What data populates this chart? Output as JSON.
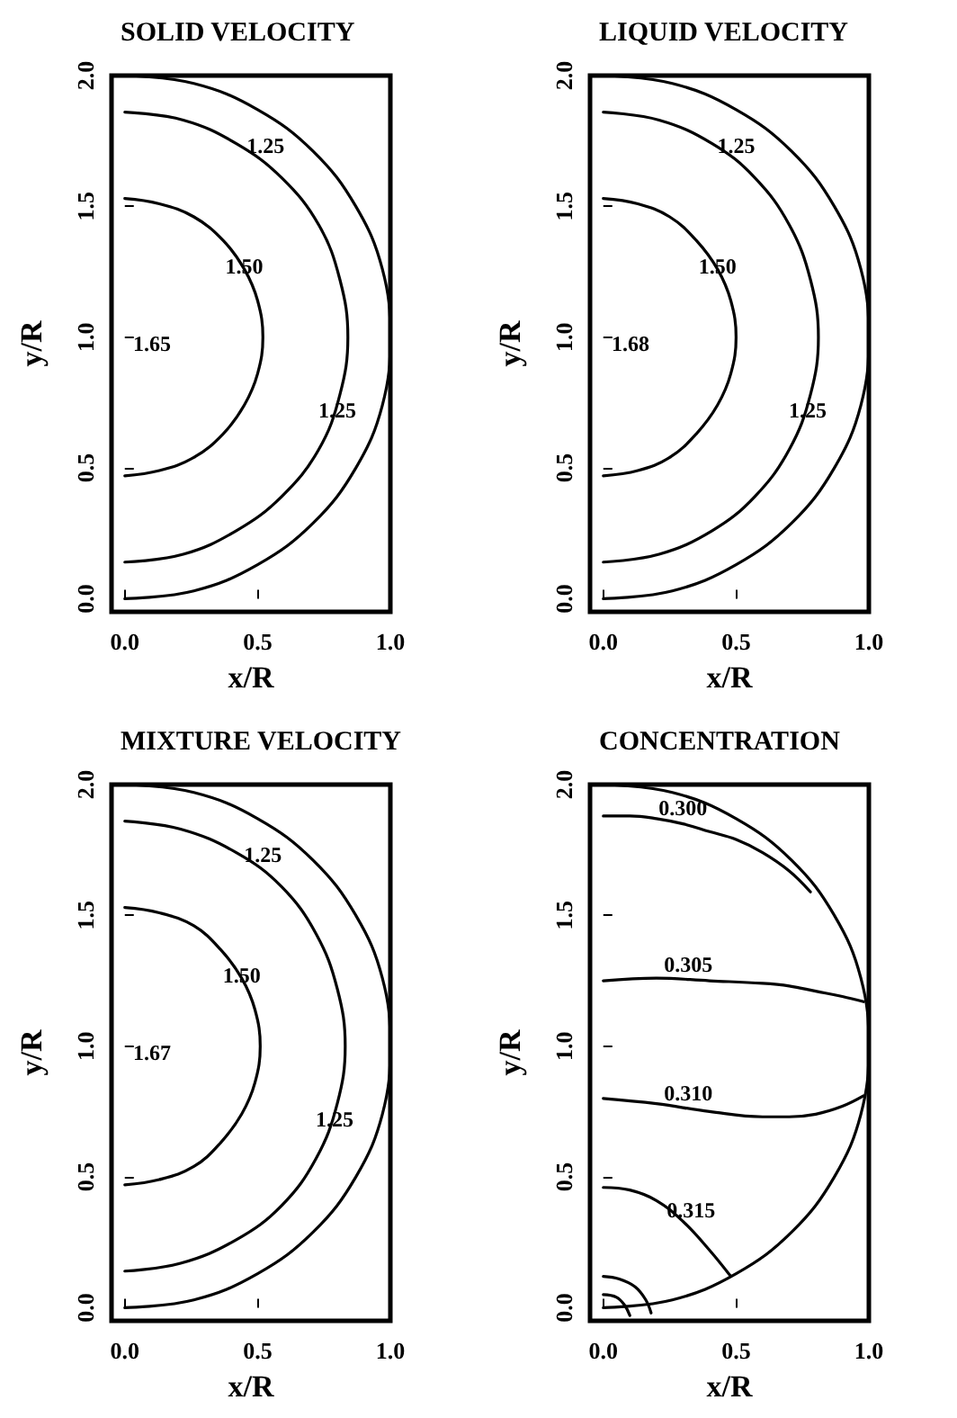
{
  "chart_data": [
    {
      "type": "line",
      "title": "SOLID VELOCITY",
      "xlabel": "x/R",
      "ylabel": "y/R",
      "xlim": [
        -0.05,
        1.0
      ],
      "ylim": [
        -0.05,
        2.0
      ],
      "marker": "none",
      "line_style": "solid",
      "xticks": [
        {
          "value": 0,
          "label": "0.0"
        },
        {
          "value": 0.5,
          "label": "0.5"
        },
        {
          "value": 1,
          "label": "1.0"
        }
      ],
      "yticks": [
        {
          "value": 0,
          "label": "0.0"
        },
        {
          "value": 0.5,
          "label": "0.5"
        },
        {
          "value": 1,
          "label": "1.0"
        },
        {
          "value": 1.5,
          "label": "1.5"
        },
        {
          "value": 2,
          "label": "2.0"
        }
      ],
      "series": [
        {
          "color": "#000000",
          "x": [
            0,
            0.26,
            0.5,
            0.71,
            0.87,
            0.97,
            1,
            0.97,
            0.87,
            0.71,
            0.5,
            0.26,
            0
          ],
          "values": [
            0,
            0.03,
            0.13,
            0.29,
            0.5,
            0.74,
            1,
            1.26,
            1.5,
            1.71,
            1.87,
            1.97,
            2
          ]
        },
        {
          "color": "#000000",
          "x": [
            0,
            0.22,
            0.42,
            0.59,
            0.73,
            0.81,
            0.84,
            0.81,
            0.73,
            0.59,
            0.42,
            0.22,
            0
          ],
          "values": [
            0.14,
            0.17,
            0.26,
            0.39,
            0.57,
            0.78,
            1,
            1.22,
            1.43,
            1.61,
            1.74,
            1.83,
            1.86
          ]
        },
        {
          "color": "#000000",
          "x": [
            0,
            0.13,
            0.26,
            0.37,
            0.45,
            0.5,
            0.52,
            0.5,
            0.45,
            0.37,
            0.26,
            0.13,
            0
          ],
          "values": [
            0.47,
            0.49,
            0.54,
            0.63,
            0.74,
            0.86,
            1,
            1.14,
            1.26,
            1.37,
            1.46,
            1.51,
            1.53
          ]
        }
      ],
      "annotations": [
        {
          "text": "1.25",
          "x": 0.53,
          "y": 1.67
        },
        {
          "text": "1.25",
          "x": 0.8,
          "y": 0.66
        },
        {
          "text": "1.50",
          "x": 0.45,
          "y": 1.21
        },
        "1.65"
      ]
    },
    {
      "type": "line",
      "title": "LIQUID VELOCITY",
      "xlabel": "x/R",
      "ylabel": "y/R",
      "xlim": [
        -0.05,
        1.0
      ],
      "ylim": [
        -0.05,
        2.0
      ],
      "marker": "none",
      "line_style": "solid",
      "xticks": [
        {
          "value": 0,
          "label": "0.0"
        },
        {
          "value": 0.5,
          "label": "0.5"
        },
        {
          "value": 1,
          "label": "1.0"
        }
      ],
      "yticks": [
        {
          "value": 0,
          "label": "0.0"
        },
        {
          "value": 0.5,
          "label": "0.5"
        },
        {
          "value": 1,
          "label": "1.0"
        },
        {
          "value": 1.5,
          "label": "1.5"
        },
        {
          "value": 2,
          "label": "2.0"
        }
      ],
      "series": [
        {
          "color": "#000000",
          "x": [
            0,
            0.26,
            0.5,
            0.71,
            0.87,
            0.97,
            1,
            0.97,
            0.87,
            0.71,
            0.5,
            0.26,
            0
          ],
          "values": [
            0,
            0.03,
            0.13,
            0.29,
            0.5,
            0.74,
            1,
            1.26,
            1.5,
            1.71,
            1.87,
            1.97,
            2
          ]
        },
        {
          "color": "#000000",
          "x": [
            0,
            0.21,
            0.41,
            0.57,
            0.7,
            0.78,
            0.81,
            0.78,
            0.7,
            0.57,
            0.41,
            0.21,
            0
          ],
          "values": [
            0.14,
            0.17,
            0.26,
            0.39,
            0.57,
            0.78,
            1,
            1.22,
            1.43,
            1.61,
            1.74,
            1.83,
            1.86
          ]
        },
        {
          "color": "#000000",
          "x": [
            0,
            0.13,
            0.25,
            0.35,
            0.43,
            0.48,
            0.5,
            0.48,
            0.43,
            0.35,
            0.25,
            0.13,
            0
          ],
          "values": [
            0.47,
            0.49,
            0.54,
            0.63,
            0.74,
            0.86,
            1,
            1.14,
            1.26,
            1.37,
            1.46,
            1.51,
            1.53
          ]
        }
      ],
      "annotations": [
        {
          "text": "1.25",
          "x": 0.5,
          "y": 1.67
        },
        {
          "text": "1.25",
          "x": 0.77,
          "y": 0.66
        },
        {
          "text": "1.50",
          "x": 0.43,
          "y": 1.21
        },
        "1.68"
      ]
    },
    {
      "type": "line",
      "title": "MIXTURE VELOCITY",
      "xlabel": "x/R",
      "ylabel": "y/R",
      "xlim": [
        -0.05,
        1.0
      ],
      "ylim": [
        -0.05,
        2.0
      ],
      "marker": "none",
      "line_style": "solid",
      "xticks": [
        {
          "value": 0,
          "label": "0.0"
        },
        {
          "value": 0.5,
          "label": "0.5"
        },
        {
          "value": 1,
          "label": "1.0"
        }
      ],
      "yticks": [
        {
          "value": 0,
          "label": "0.0"
        },
        {
          "value": 0.5,
          "label": "0.5"
        },
        {
          "value": 1,
          "label": "1.0"
        },
        {
          "value": 1.5,
          "label": "1.5"
        },
        {
          "value": 2,
          "label": "2.0"
        }
      ],
      "series": [
        {
          "color": "#000000",
          "x": [
            0,
            0.26,
            0.5,
            0.71,
            0.87,
            0.97,
            1,
            0.97,
            0.87,
            0.71,
            0.5,
            0.26,
            0
          ],
          "values": [
            0,
            0.03,
            0.13,
            0.29,
            0.5,
            0.74,
            1,
            1.26,
            1.5,
            1.71,
            1.87,
            1.97,
            2
          ]
        },
        {
          "color": "#000000",
          "x": [
            0,
            0.21,
            0.42,
            0.59,
            0.72,
            0.8,
            0.83,
            0.8,
            0.72,
            0.59,
            0.42,
            0.21,
            0
          ],
          "values": [
            0.14,
            0.17,
            0.26,
            0.39,
            0.57,
            0.78,
            1,
            1.22,
            1.43,
            1.61,
            1.74,
            1.83,
            1.86
          ]
        },
        {
          "color": "#000000",
          "x": [
            0,
            0.13,
            0.26,
            0.36,
            0.44,
            0.49,
            0.51,
            0.49,
            0.44,
            0.36,
            0.26,
            0.13,
            0
          ],
          "values": [
            0.47,
            0.49,
            0.54,
            0.63,
            0.74,
            0.86,
            1,
            1.14,
            1.26,
            1.37,
            1.46,
            1.51,
            1.53
          ]
        }
      ],
      "annotations": [
        {
          "text": "1.25",
          "x": 0.52,
          "y": 1.67
        },
        {
          "text": "1.25",
          "x": 0.79,
          "y": 0.66
        },
        {
          "text": "1.50",
          "x": 0.44,
          "y": 1.21
        },
        "1.67"
      ]
    },
    {
      "type": "line",
      "title": "CONCENTRATION",
      "xlabel": "x/R",
      "ylabel": "y/R",
      "xlim": [
        -0.05,
        1.0
      ],
      "ylim": [
        -0.05,
        2.0
      ],
      "marker": "none",
      "line_style": "solid",
      "xticks": [
        {
          "value": 0,
          "label": "0.0"
        },
        {
          "value": 0.5,
          "label": "0.5"
        },
        {
          "value": 1,
          "label": "1.0"
        }
      ],
      "yticks": [
        {
          "value": 0,
          "label": "0.0"
        },
        {
          "value": 0.5,
          "label": "0.5"
        },
        {
          "value": 1,
          "label": "1.0"
        },
        {
          "value": 1.5,
          "label": "1.5"
        },
        {
          "value": 2,
          "label": "2.0"
        }
      ],
      "series": [
        {
          "color": "#000000",
          "x": [
            0,
            0.26,
            0.5,
            0.71,
            0.87,
            0.97,
            1,
            0.97,
            0.87,
            0.71,
            0.5,
            0.26,
            0
          ],
          "values": [
            0,
            0.03,
            0.13,
            0.29,
            0.5,
            0.74,
            1,
            1.26,
            1.5,
            1.71,
            1.87,
            1.97,
            2
          ]
        },
        {
          "color": "#000000",
          "x": [
            0,
            0.1,
            0.2,
            0.3,
            0.4,
            0.5,
            0.6,
            0.7,
            0.78
          ],
          "values": [
            1.88,
            1.88,
            1.87,
            1.85,
            1.82,
            1.79,
            1.74,
            1.67,
            1.59
          ]
        },
        {
          "color": "#000000",
          "x": [
            0,
            0.2,
            0.4,
            0.6,
            0.7,
            0.8,
            0.9,
            0.98
          ],
          "values": [
            1.25,
            1.26,
            1.25,
            1.24,
            1.23,
            1.21,
            1.19,
            1.17
          ]
        },
        {
          "color": "#000000",
          "x": [
            0,
            0.2,
            0.4,
            0.6,
            0.7,
            0.8,
            0.9,
            0.98
          ],
          "values": [
            0.8,
            0.78,
            0.75,
            0.73,
            0.73,
            0.74,
            0.77,
            0.81
          ]
        },
        {
          "color": "#000000",
          "x": [
            0,
            0.1,
            0.2,
            0.3,
            0.4,
            0.48
          ],
          "values": [
            0.46,
            0.45,
            0.41,
            0.33,
            0.22,
            0.12
          ]
        },
        {
          "color": "#000000",
          "x": [
            0,
            0.06,
            0.12,
            0.16,
            0.18
          ],
          "values": [
            0.12,
            0.11,
            0.08,
            0.03,
            -0.02
          ]
        },
        {
          "color": "#000000",
          "x": [
            0,
            0.05,
            0.08,
            0.1
          ],
          "values": [
            0.05,
            0.04,
            0.01,
            -0.03
          ]
        }
      ],
      "annotations": [
        {
          "text": "0.300",
          "x": 0.3,
          "y": 1.85
        },
        {
          "text": "0.305",
          "x": 0.32,
          "y": 1.25
        },
        {
          "text": "0.310",
          "x": 0.32,
          "y": 0.76
        },
        {
          "text": "0.315",
          "x": 0.33,
          "y": 0.31
        }
      ]
    }
  ]
}
